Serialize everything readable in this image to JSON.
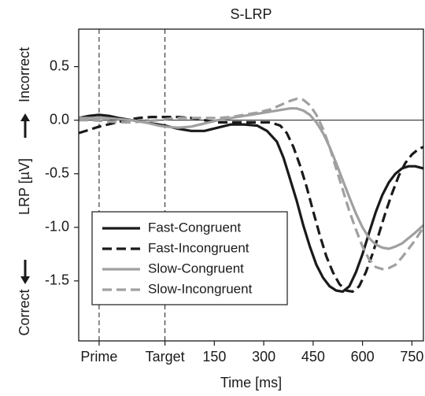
{
  "chart_data": {
    "type": "line",
    "title": "S-LRP",
    "xlabel": "Time [ms]",
    "ylabel": {
      "correct": "Correct",
      "middle": "LRP [µV]",
      "incorrect": "Incorrect"
    },
    "xlim": [
      -262,
      785
    ],
    "ylim": [
      -2.06,
      0.85
    ],
    "x_ticks": [
      {
        "value": -200,
        "label": "Prime"
      },
      {
        "value": 0,
        "label": "Target"
      },
      {
        "value": 150,
        "label": "150"
      },
      {
        "value": 300,
        "label": "300"
      },
      {
        "value": 450,
        "label": "450"
      },
      {
        "value": 600,
        "label": "600"
      },
      {
        "value": 750,
        "label": "750"
      }
    ],
    "y_ticks": [
      {
        "value": 0.5,
        "label": "0.5"
      },
      {
        "value": 0.0,
        "label": "0.0"
      },
      {
        "value": -0.5,
        "label": "-0.5"
      },
      {
        "value": -1.0,
        "label": "-1.0"
      },
      {
        "value": -1.5,
        "label": "-1.5"
      }
    ],
    "vertical_markers": [
      -200,
      0
    ],
    "zero_line": 0,
    "grid": false,
    "legend_position": "bottom-left",
    "series": [
      {
        "name": "Fast-Congruent",
        "color": "#1a1a1a",
        "dash": "solid",
        "x": [
          -262,
          -230,
          -200,
          -170,
          -140,
          -100,
          -60,
          -20,
          0,
          40,
          80,
          120,
          160,
          200,
          240,
          280,
          310,
          340,
          360,
          380,
          400,
          420,
          440,
          460,
          480,
          500,
          520,
          540,
          560,
          580,
          600,
          620,
          640,
          660,
          680,
          700,
          720,
          740,
          760,
          785
        ],
        "y": [
          0.02,
          0.04,
          0.05,
          0.04,
          0.02,
          0.0,
          -0.02,
          -0.04,
          -0.05,
          -0.08,
          -0.1,
          -0.1,
          -0.07,
          -0.04,
          -0.04,
          -0.05,
          -0.1,
          -0.2,
          -0.35,
          -0.55,
          -0.75,
          -0.98,
          -1.18,
          -1.35,
          -1.47,
          -1.55,
          -1.59,
          -1.6,
          -1.55,
          -1.42,
          -1.25,
          -1.05,
          -0.86,
          -0.7,
          -0.58,
          -0.5,
          -0.45,
          -0.43,
          -0.43,
          -0.45
        ]
      },
      {
        "name": "Fast-Incongruent",
        "color": "#1a1a1a",
        "dash": "dashed",
        "x": [
          -262,
          -230,
          -200,
          -160,
          -120,
          -80,
          -40,
          0,
          40,
          80,
          120,
          160,
          200,
          240,
          280,
          320,
          350,
          370,
          390,
          410,
          430,
          450,
          470,
          490,
          510,
          530,
          550,
          570,
          590,
          610,
          630,
          650,
          670,
          690,
          710,
          730,
          750,
          770,
          785
        ],
        "y": [
          -0.12,
          -0.09,
          -0.06,
          -0.03,
          0.0,
          0.02,
          0.03,
          0.03,
          0.03,
          0.02,
          0.0,
          -0.02,
          -0.02,
          -0.02,
          -0.02,
          -0.02,
          -0.05,
          -0.12,
          -0.25,
          -0.42,
          -0.62,
          -0.85,
          -1.07,
          -1.27,
          -1.42,
          -1.53,
          -1.59,
          -1.6,
          -1.55,
          -1.42,
          -1.25,
          -1.06,
          -0.86,
          -0.68,
          -0.52,
          -0.4,
          -0.32,
          -0.27,
          -0.25
        ]
      },
      {
        "name": "Slow-Congruent",
        "color": "#a0a0a0",
        "dash": "solid",
        "x": [
          -262,
          -220,
          -180,
          -140,
          -100,
          -60,
          -20,
          0,
          40,
          80,
          120,
          160,
          200,
          240,
          280,
          320,
          360,
          380,
          400,
          420,
          440,
          460,
          480,
          500,
          520,
          540,
          560,
          580,
          600,
          620,
          640,
          660,
          680,
          700,
          720,
          740,
          760,
          785
        ],
        "y": [
          0.02,
          0.02,
          0.02,
          0.01,
          0.0,
          -0.02,
          -0.05,
          -0.06,
          -0.07,
          -0.06,
          -0.03,
          0.0,
          0.02,
          0.04,
          0.06,
          0.08,
          0.1,
          0.11,
          0.11,
          0.09,
          0.05,
          -0.02,
          -0.12,
          -0.25,
          -0.4,
          -0.56,
          -0.72,
          -0.87,
          -1.0,
          -1.1,
          -1.16,
          -1.19,
          -1.2,
          -1.18,
          -1.15,
          -1.1,
          -1.05,
          -0.98
        ]
      },
      {
        "name": "Slow-Incongruent",
        "color": "#a0a0a0",
        "dash": "dashed",
        "x": [
          -262,
          -220,
          -180,
          -140,
          -100,
          -60,
          -20,
          0,
          40,
          80,
          120,
          160,
          200,
          240,
          280,
          320,
          350,
          380,
          400,
          420,
          440,
          460,
          480,
          500,
          520,
          540,
          560,
          580,
          600,
          620,
          640,
          660,
          680,
          700,
          720,
          740,
          760,
          785
        ],
        "y": [
          0.0,
          0.0,
          -0.01,
          -0.02,
          -0.02,
          -0.01,
          0.0,
          0.01,
          0.02,
          0.02,
          0.02,
          0.02,
          0.03,
          0.05,
          0.07,
          0.1,
          0.14,
          0.18,
          0.2,
          0.19,
          0.14,
          0.05,
          -0.08,
          -0.25,
          -0.45,
          -0.65,
          -0.85,
          -1.02,
          -1.18,
          -1.3,
          -1.37,
          -1.39,
          -1.38,
          -1.35,
          -1.28,
          -1.2,
          -1.12,
          -1.0
        ]
      }
    ]
  }
}
